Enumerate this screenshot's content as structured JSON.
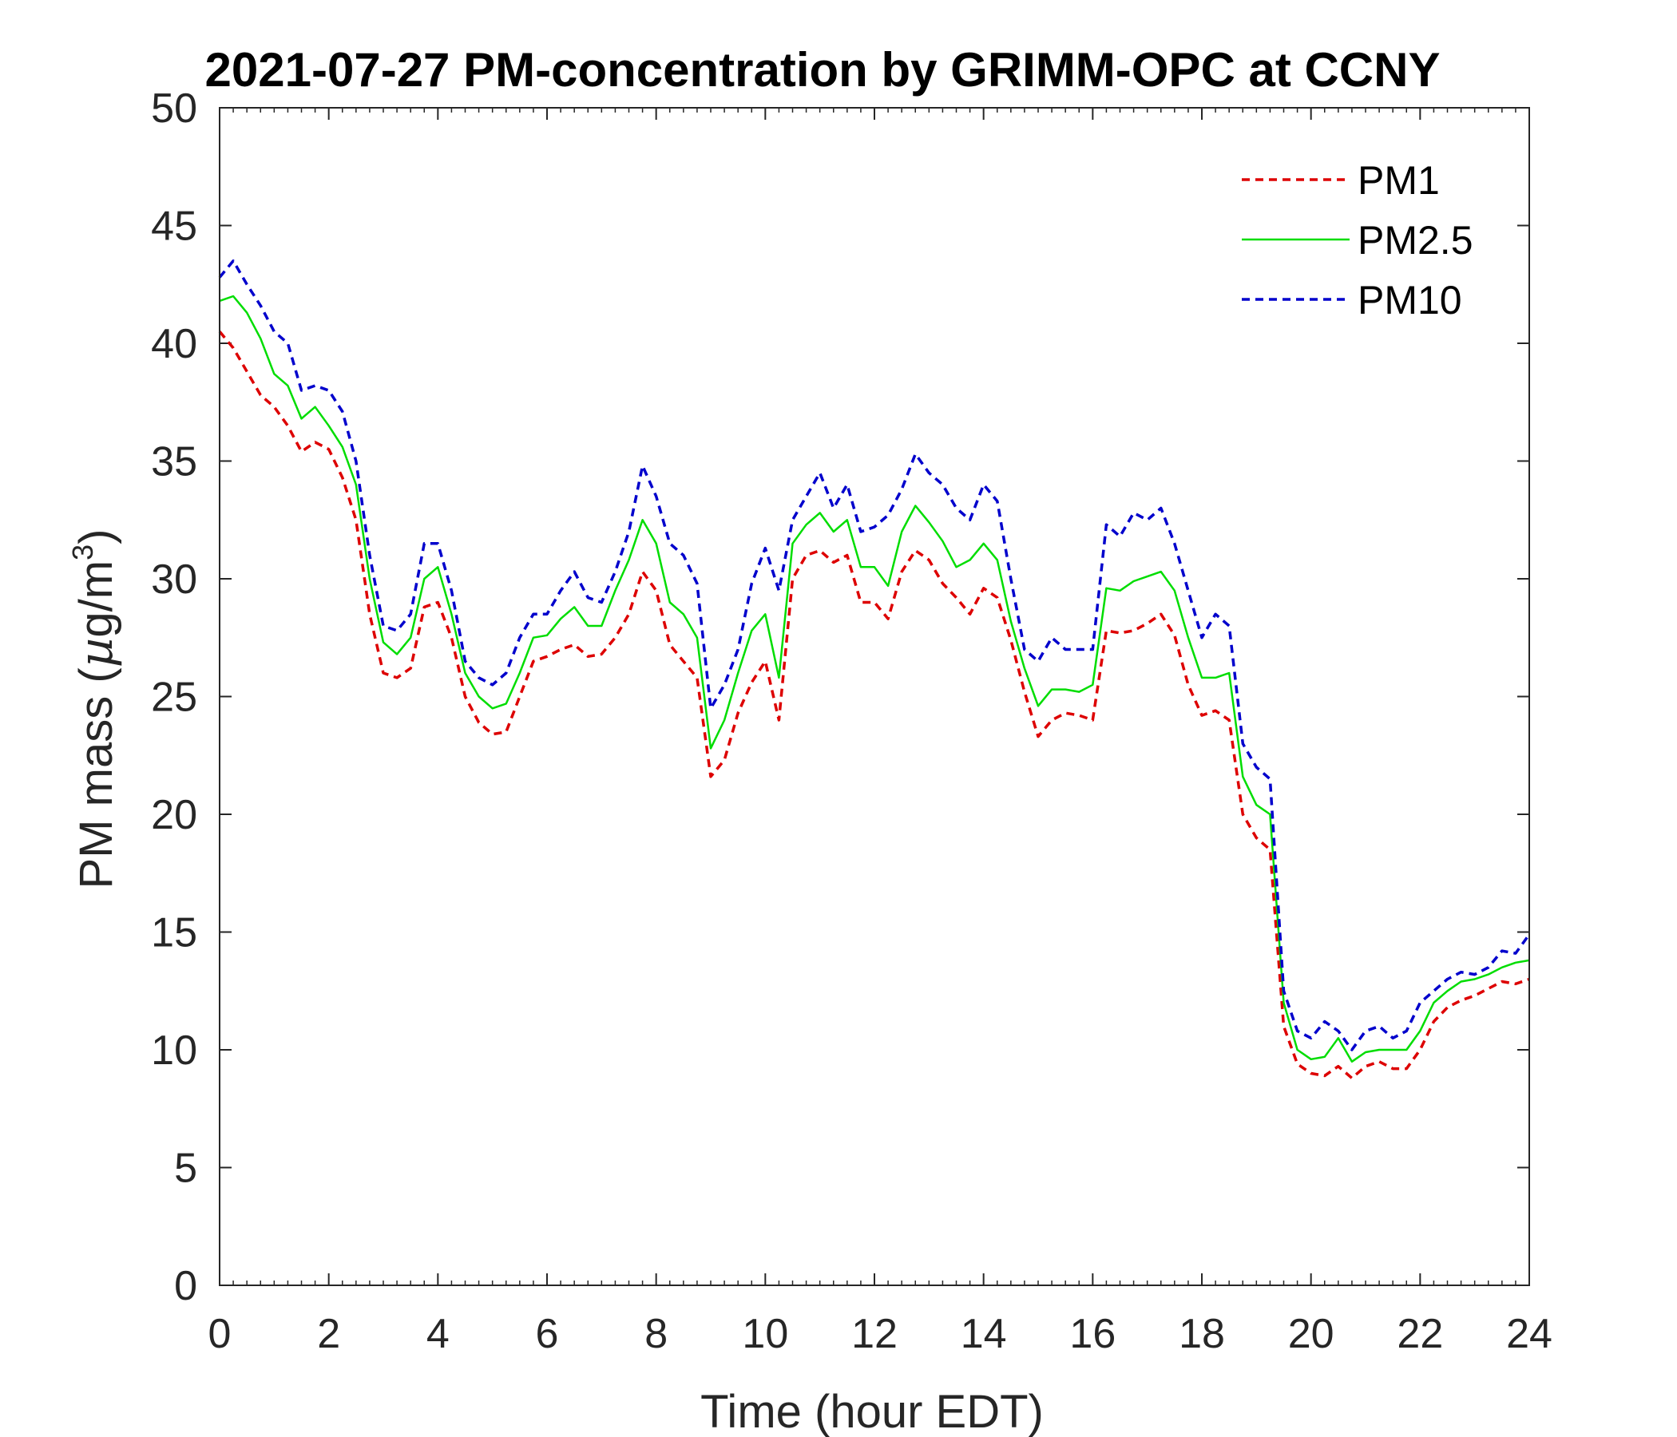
{
  "chart_data": {
    "type": "line",
    "title": "2021-07-27 PM-concentration by GRIMM-OPC at CCNY",
    "xlabel": "Time (hour EDT)",
    "ylabel": "PM mass (µg/m³)",
    "ylabel_parts": {
      "main": "PM mass (",
      "mu": "µ",
      "unit": "g/m",
      "sup": "3",
      "close": ")"
    },
    "xlim": [
      0,
      24
    ],
    "ylim": [
      0,
      50
    ],
    "xticks": [
      0,
      2,
      4,
      6,
      8,
      10,
      12,
      14,
      16,
      18,
      20,
      22,
      24
    ],
    "xtick_labels": [
      "0",
      "2",
      "4",
      "6",
      "8",
      "10",
      "12",
      "14",
      "16",
      "18",
      "20",
      "22",
      "24"
    ],
    "yticks": [
      0,
      5,
      10,
      15,
      20,
      25,
      30,
      35,
      40,
      45,
      50
    ],
    "ytick_labels": [
      "0",
      "5",
      "10",
      "15",
      "20",
      "25",
      "30",
      "35",
      "40",
      "45",
      "50"
    ],
    "legend_position": "top-right",
    "grid": false,
    "x": [
      0,
      0.25,
      0.5,
      0.75,
      1,
      1.25,
      1.5,
      1.75,
      2,
      2.25,
      2.5,
      2.75,
      3,
      3.25,
      3.5,
      3.75,
      4,
      4.25,
      4.5,
      4.75,
      5,
      5.25,
      5.5,
      5.75,
      6,
      6.25,
      6.5,
      6.75,
      7,
      7.25,
      7.5,
      7.75,
      8,
      8.25,
      8.5,
      8.75,
      9,
      9.25,
      9.5,
      9.75,
      10,
      10.25,
      10.5,
      10.75,
      11,
      11.25,
      11.5,
      11.75,
      12,
      12.25,
      12.5,
      12.75,
      13,
      13.25,
      13.5,
      13.75,
      14,
      14.25,
      14.5,
      14.75,
      15,
      15.25,
      15.5,
      15.75,
      16,
      16.25,
      16.5,
      16.75,
      17,
      17.25,
      17.5,
      17.75,
      18,
      18.25,
      18.5,
      18.75,
      19,
      19.25,
      19.5,
      19.75,
      20,
      20.25,
      20.5,
      20.75,
      21,
      21.25,
      21.5,
      21.75,
      22,
      22.25,
      22.5,
      22.75,
      23,
      23.25,
      23.5,
      23.75,
      24
    ],
    "series": [
      {
        "name": "PM1",
        "color": "#dd0000",
        "dash": "dashed",
        "values": [
          40.5,
          39.8,
          38.8,
          37.8,
          37.3,
          36.5,
          35.4,
          35.8,
          35.5,
          34.3,
          32.5,
          28.5,
          26.0,
          25.8,
          26.2,
          28.8,
          29.0,
          27.5,
          25.0,
          23.9,
          23.4,
          23.5,
          25.0,
          26.5,
          26.7,
          27.0,
          27.2,
          26.7,
          26.8,
          27.5,
          28.5,
          30.3,
          29.5,
          27.2,
          26.5,
          25.8,
          21.6,
          22.3,
          24.3,
          25.6,
          26.5,
          24.0,
          30.0,
          31.0,
          31.2,
          30.7,
          31.0,
          29.0,
          29.0,
          28.3,
          30.3,
          31.2,
          30.8,
          29.8,
          29.2,
          28.5,
          29.6,
          29.2,
          27.4,
          25.2,
          23.3,
          24.0,
          24.3,
          24.2,
          24.0,
          27.8,
          27.7,
          27.8,
          28.1,
          28.5,
          27.6,
          25.5,
          24.2,
          24.4,
          24.0,
          20.0,
          19.0,
          18.5,
          11.0,
          9.4,
          9.0,
          8.9,
          9.3,
          8.8,
          9.3,
          9.5,
          9.2,
          9.2,
          10.0,
          11.2,
          11.8,
          12.1,
          12.3,
          12.6,
          12.9,
          12.8,
          13.0
        ],
        "name_label": "PM1"
      },
      {
        "name": "PM2.5",
        "color": "#00dd00",
        "dash": "solid",
        "values": [
          41.8,
          42.0,
          41.3,
          40.2,
          38.7,
          38.2,
          36.8,
          37.3,
          36.5,
          35.6,
          34.0,
          30.0,
          27.3,
          26.8,
          27.5,
          30.0,
          30.5,
          28.5,
          26.0,
          25.0,
          24.5,
          24.7,
          26.0,
          27.5,
          27.6,
          28.3,
          28.8,
          28.0,
          28.0,
          29.5,
          30.8,
          32.5,
          31.5,
          29.0,
          28.5,
          27.5,
          22.8,
          24.0,
          26.0,
          27.8,
          28.5,
          25.8,
          31.5,
          32.3,
          32.8,
          32.0,
          32.5,
          30.5,
          30.5,
          29.7,
          32.0,
          33.1,
          32.4,
          31.6,
          30.5,
          30.8,
          31.5,
          30.8,
          28.2,
          26.2,
          24.6,
          25.3,
          25.3,
          25.2,
          25.5,
          29.6,
          29.5,
          29.9,
          30.1,
          30.3,
          29.5,
          27.5,
          25.8,
          25.8,
          26.0,
          21.6,
          20.4,
          20.0,
          12.0,
          10.0,
          9.6,
          9.7,
          10.5,
          9.5,
          9.9,
          10.0,
          10.0,
          10.0,
          10.8,
          12.0,
          12.5,
          12.9,
          13.0,
          13.2,
          13.5,
          13.7,
          13.8
        ],
        "name_label": "PM2.5"
      },
      {
        "name": "PM10",
        "color": "#0000cc",
        "dash": "dashed",
        "values": [
          42.8,
          43.5,
          42.5,
          41.6,
          40.5,
          40.0,
          38.0,
          38.2,
          38.0,
          37.1,
          35.0,
          31.0,
          28.0,
          27.8,
          28.5,
          31.5,
          31.5,
          29.5,
          26.5,
          25.8,
          25.5,
          26.0,
          27.5,
          28.5,
          28.5,
          29.5,
          30.3,
          29.2,
          29.0,
          30.3,
          32.0,
          34.8,
          33.5,
          31.5,
          31.0,
          29.8,
          24.5,
          25.5,
          27.0,
          29.8,
          31.3,
          29.5,
          32.5,
          33.5,
          34.5,
          33.0,
          34.0,
          32.0,
          32.2,
          32.7,
          33.8,
          35.3,
          34.5,
          34.0,
          33.0,
          32.5,
          34.0,
          33.3,
          30.0,
          27.0,
          26.5,
          27.5,
          27.0,
          27.0,
          27.0,
          32.3,
          31.8,
          32.8,
          32.5,
          33.0,
          31.5,
          29.5,
          27.5,
          28.5,
          28.0,
          23.0,
          22.0,
          21.5,
          12.5,
          10.8,
          10.5,
          11.2,
          10.8,
          10.0,
          10.8,
          11.0,
          10.5,
          10.8,
          12.0,
          12.5,
          13.0,
          13.3,
          13.2,
          13.5,
          14.2,
          14.1,
          14.9
        ],
        "name_label": "PM10"
      }
    ]
  }
}
